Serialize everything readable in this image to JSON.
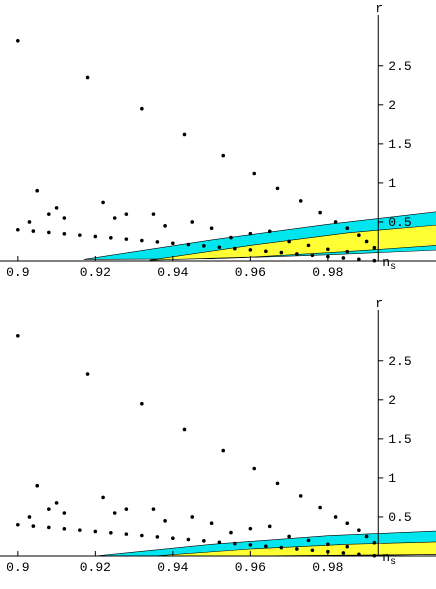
{
  "chart_data": [
    {
      "type": "scatter",
      "xlabel": "n",
      "xlabel_sub": "s",
      "ylabel": "r",
      "xlim": [
        0.8954,
        1.0079
      ],
      "ylim": [
        0,
        3.15
      ],
      "yaxis_x": 0.993,
      "xticks": [
        0.9,
        0.92,
        0.94,
        0.96,
        0.98
      ],
      "yticks": [
        0.5,
        1,
        1.5,
        2,
        2.5
      ],
      "color": "#000000",
      "regions": [
        {
          "color": "#00e5ee",
          "x": [
            0.917,
            0.95,
            0.98,
            1.008,
            1.008,
            0.98,
            0.95
          ],
          "y": [
            0.02,
            0.27,
            0.47,
            0.63,
            0.14,
            0.08,
            0.03
          ]
        },
        {
          "color": "#ffff33",
          "x": [
            0.934,
            0.96,
            0.985,
            1.008,
            1.008,
            0.985,
            0.96
          ],
          "y": [
            0.01,
            0.2,
            0.36,
            0.46,
            0.2,
            0.12,
            0.05
          ]
        }
      ],
      "x": [
        0.9,
        0.918,
        0.932,
        0.943,
        0.953,
        0.961,
        0.967,
        0.973,
        0.978,
        0.982,
        0.985,
        0.988,
        0.99,
        0.992,
        0.9,
        0.904,
        0.908,
        0.912,
        0.916,
        0.92,
        0.924,
        0.928,
        0.932,
        0.936,
        0.94,
        0.944,
        0.948,
        0.952,
        0.956,
        0.96,
        0.964,
        0.968,
        0.972,
        0.976,
        0.98,
        0.984,
        0.988,
        0.992,
        0.905,
        0.908,
        0.91,
        0.903,
        0.912,
        0.922,
        0.925,
        0.928,
        0.935,
        0.938,
        0.945,
        0.95,
        0.955,
        0.96,
        0.965,
        0.97,
        0.975,
        0.98,
        0.985
      ],
      "y": [
        2.82,
        2.35,
        1.95,
        1.62,
        1.35,
        1.12,
        0.93,
        0.77,
        0.62,
        0.5,
        0.42,
        0.33,
        0.25,
        0.17,
        0.4,
        0.383,
        0.366,
        0.348,
        0.331,
        0.314,
        0.297,
        0.28,
        0.262,
        0.245,
        0.228,
        0.211,
        0.194,
        0.176,
        0.159,
        0.142,
        0.125,
        0.108,
        0.09,
        0.073,
        0.056,
        0.039,
        0.022,
        0.004,
        0.9,
        0.6,
        0.68,
        0.5,
        0.55,
        0.75,
        0.55,
        0.6,
        0.6,
        0.45,
        0.5,
        0.42,
        0.3,
        0.35,
        0.38,
        0.25,
        0.2,
        0.15,
        0.12
      ]
    },
    {
      "type": "scatter",
      "xlabel": "n",
      "xlabel_sub": "s",
      "ylabel": "r",
      "xlim": [
        0.8954,
        1.0079
      ],
      "ylim": [
        0,
        3.15
      ],
      "yaxis_x": 0.993,
      "xticks": [
        0.9,
        0.92,
        0.94,
        0.96,
        0.98
      ],
      "yticks": [
        0.5,
        1,
        1.5,
        2,
        2.5
      ],
      "color": "#000000",
      "regions": [
        {
          "color": "#00e5ee",
          "x": [
            0.92,
            0.95,
            0.98,
            1.008,
            1.008,
            0.98,
            0.95
          ],
          "y": [
            0.0,
            0.15,
            0.26,
            0.32,
            0.02,
            0.0,
            0.0
          ]
        },
        {
          "color": "#ffff33",
          "x": [
            0.935,
            0.96,
            0.985,
            1.008,
            1.008,
            0.985,
            0.96
          ],
          "y": [
            0.0,
            0.09,
            0.15,
            0.18,
            0.02,
            0.01,
            0.0
          ]
        }
      ],
      "x": [
        0.9,
        0.918,
        0.932,
        0.943,
        0.953,
        0.961,
        0.967,
        0.973,
        0.978,
        0.982,
        0.985,
        0.988,
        0.99,
        0.992,
        0.9,
        0.904,
        0.908,
        0.912,
        0.916,
        0.92,
        0.924,
        0.928,
        0.932,
        0.936,
        0.94,
        0.944,
        0.948,
        0.952,
        0.956,
        0.96,
        0.964,
        0.968,
        0.972,
        0.976,
        0.98,
        0.984,
        0.988,
        0.992,
        0.905,
        0.908,
        0.91,
        0.903,
        0.912,
        0.922,
        0.925,
        0.928,
        0.935,
        0.938,
        0.945,
        0.95,
        0.955,
        0.96,
        0.965,
        0.97,
        0.975,
        0.98,
        0.985
      ],
      "y": [
        2.82,
        2.33,
        1.95,
        1.62,
        1.35,
        1.12,
        0.93,
        0.77,
        0.62,
        0.5,
        0.42,
        0.33,
        0.25,
        0.17,
        0.4,
        0.383,
        0.366,
        0.348,
        0.331,
        0.314,
        0.297,
        0.28,
        0.262,
        0.245,
        0.228,
        0.211,
        0.194,
        0.176,
        0.159,
        0.142,
        0.125,
        0.108,
        0.09,
        0.073,
        0.056,
        0.039,
        0.022,
        0.004,
        0.9,
        0.6,
        0.68,
        0.5,
        0.55,
        0.75,
        0.55,
        0.6,
        0.6,
        0.45,
        0.5,
        0.42,
        0.3,
        0.35,
        0.38,
        0.25,
        0.2,
        0.15,
        0.12
      ]
    }
  ]
}
